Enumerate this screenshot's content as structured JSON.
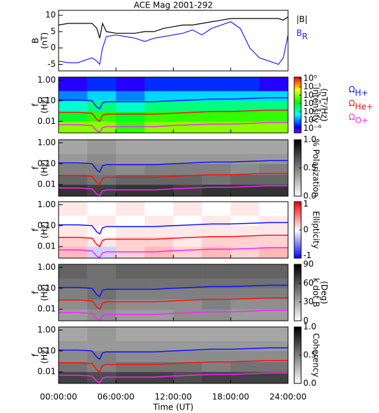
{
  "chart_data": [
    {
      "type": "line",
      "title": "ACE Mag 2001-292",
      "ylabel": [
        "B",
        "(nT)"
      ],
      "x": [
        0,
        1,
        2,
        3,
        3.5,
        4,
        4.3,
        4.6,
        5,
        6,
        7,
        8,
        9,
        10,
        11,
        12,
        13,
        14,
        15,
        16,
        17,
        18,
        19,
        20,
        21,
        22,
        23,
        23.5,
        24
      ],
      "series": [
        {
          "name": "|B|",
          "color": "#000000",
          "values": [
            7,
            7.5,
            7.5,
            7.5,
            7.5,
            6,
            3,
            7.5,
            5,
            4.5,
            4.5,
            4.5,
            5,
            5,
            6,
            6.5,
            7,
            7,
            7.5,
            8,
            8.5,
            9,
            9,
            9,
            9,
            9,
            9,
            8.5,
            9.5
          ]
        },
        {
          "name": "B",
          "subscript": "R",
          "color": "#2020ff",
          "values": [
            -4,
            -4.5,
            -4.5,
            -3.5,
            -3,
            -4,
            -5,
            0,
            3.5,
            4,
            3.5,
            3,
            2,
            3,
            3.5,
            4,
            4.5,
            5.5,
            4,
            6,
            7,
            8,
            6,
            0,
            -3,
            -4,
            -5,
            -3,
            4
          ]
        }
      ],
      "xlim": [
        0,
        24
      ],
      "xticks": [
        0,
        6,
        12,
        18,
        24
      ],
      "ylim": [
        -7,
        11.5
      ],
      "yticks": [
        -5,
        0,
        5,
        10
      ]
    },
    {
      "type": "spectrogram",
      "ylabel": [
        "f",
        "(Hz)"
      ],
      "log_y": true,
      "ylim": [
        0.0028,
        1.4
      ],
      "yticks": [
        {
          "value": 1,
          "label": "1.00"
        },
        {
          "value": 0.1,
          "label": "0.10"
        },
        {
          "value": 0.01,
          "label": "0.01"
        }
      ],
      "xlim": [
        0,
        24
      ],
      "xticks": [
        0,
        6,
        12,
        18,
        24
      ],
      "tbins": [
        0,
        3,
        6,
        9,
        12,
        15,
        18,
        21,
        24
      ],
      "fbins": [
        0.0028,
        0.01,
        0.03,
        0.1,
        0.3,
        1.4
      ],
      "z": [
        [
          0.01,
          0.01,
          0.003,
          0.01,
          0.01,
          0.01,
          0.01,
          0.01
        ],
        [
          0.001,
          0.003,
          0.001,
          0.003,
          0.003,
          0.003,
          0.003,
          0.003
        ],
        [
          0.0001,
          0.0003,
          0.0001,
          0.0003,
          0.0003,
          0.0003,
          0.0003,
          0.0003
        ],
        [
          1e-05,
          3e-05,
          1e-05,
          3e-05,
          3e-05,
          3e-05,
          3e-05,
          3e-05
        ],
        [
          1e-06,
          3e-06,
          1e-06,
          3e-06,
          3e-06,
          3e-06,
          3e-06,
          1e-06
        ]
      ],
      "colormap": "rainbow",
      "zlog": true,
      "zlim": [
        3e-07,
        1.5
      ],
      "zticks": [
        {
          "value": 1,
          "label": "10⁰"
        },
        {
          "value": 0.1,
          "label": "10⁻¹"
        },
        {
          "value": 0.01,
          "label": "10⁻²"
        },
        {
          "value": 0.001,
          "label": "10⁻³"
        },
        {
          "value": 0.0001,
          "label": "10⁻⁴"
        },
        {
          "value": 1e-05,
          "label": "10⁻⁵"
        },
        {
          "value": 1e-06,
          "label": "10⁻⁶"
        }
      ],
      "zlabel": [
        "Intensity",
        "(nT²/Hz)"
      ],
      "x": [
        0,
        2,
        3.5,
        4,
        4.3,
        4.6,
        5,
        6,
        8,
        10,
        12,
        14,
        16,
        18,
        20,
        22,
        24
      ],
      "series": [
        {
          "name": "Ω",
          "subscript": "H+",
          "color": "#1010ff",
          "values": [
            0.11,
            0.11,
            0.1,
            0.05,
            0.04,
            0.08,
            0.09,
            0.09,
            0.09,
            0.09,
            0.1,
            0.11,
            0.12,
            0.12,
            0.13,
            0.14,
            0.14
          ]
        },
        {
          "name": "Ω",
          "subscript": "He+",
          "color": "#ff1010",
          "values": [
            0.0275,
            0.0275,
            0.025,
            0.0125,
            0.01,
            0.02,
            0.0225,
            0.0225,
            0.0225,
            0.0225,
            0.025,
            0.0275,
            0.03,
            0.03,
            0.0325,
            0.035,
            0.035
          ]
        },
        {
          "name": "Ω",
          "subscript": "O+",
          "color": "#ff20ff",
          "values": [
            0.0069,
            0.0069,
            0.0063,
            0.0035,
            0.003,
            0.005,
            0.0056,
            0.0056,
            0.0056,
            0.0056,
            0.0063,
            0.0069,
            0.0075,
            0.0075,
            0.0081,
            0.0088,
            0.0088
          ]
        }
      ]
    },
    {
      "type": "spectrogram",
      "ylabel": [
        "f",
        "(Hz)"
      ],
      "log_y": true,
      "ylim": [
        0.0028,
        1.4
      ],
      "yticks": [
        {
          "value": 1,
          "label": "1.00"
        },
        {
          "value": 0.1,
          "label": "0.10"
        },
        {
          "value": 0.01,
          "label": "0.01"
        }
      ],
      "xlim": [
        0,
        24
      ],
      "xticks": [
        0,
        6,
        12,
        18,
        24
      ],
      "tbins": [
        0,
        3,
        6,
        9,
        12,
        15,
        18,
        21,
        24
      ],
      "fbins": [
        0.0028,
        0.01,
        0.03,
        0.1,
        0.3,
        1.4
      ],
      "z": [
        [
          0.8,
          0.75,
          0.8,
          0.8,
          0.75,
          0.8,
          0.8,
          0.8
        ],
        [
          0.6,
          0.55,
          0.6,
          0.6,
          0.6,
          0.55,
          0.6,
          0.6
        ],
        [
          0.5,
          0.5,
          0.45,
          0.5,
          0.5,
          0.5,
          0.45,
          0.5
        ],
        [
          0.4,
          0.45,
          0.4,
          0.4,
          0.4,
          0.4,
          0.4,
          0.4
        ],
        [
          0.35,
          0.4,
          0.35,
          0.35,
          0.35,
          0.35,
          0.35,
          0.35
        ]
      ],
      "colormap": "gray_r",
      "zlim": [
        0,
        1
      ],
      "zticks": [
        {
          "value": 1,
          "label": "1.0"
        },
        {
          "value": 0.5,
          "label": "0.5"
        },
        {
          "value": 0,
          "label": "0.0"
        }
      ],
      "zlabel": [
        "% Polarization"
      ]
    },
    {
      "type": "spectrogram",
      "ylabel": [
        "f",
        "(Hz)"
      ],
      "log_y": true,
      "ylim": [
        0.0028,
        1.4
      ],
      "yticks": [
        {
          "value": 1,
          "label": "1.00"
        },
        {
          "value": 0.1,
          "label": "0.10"
        },
        {
          "value": 0.01,
          "label": "0.01"
        }
      ],
      "xlim": [
        0,
        24
      ],
      "xticks": [
        0,
        6,
        12,
        18,
        24
      ],
      "tbins": [
        0,
        3,
        6,
        9,
        12,
        15,
        18,
        21,
        24
      ],
      "fbins": [
        0.0028,
        0.01,
        0.03,
        0.1,
        0.3,
        1.4
      ],
      "z": [
        [
          0.3,
          -0.2,
          0.2,
          0.3,
          0.2,
          0.3,
          0.2,
          0.3
        ],
        [
          0.2,
          0.1,
          0.2,
          0.2,
          0.1,
          0.2,
          0.2,
          0.2
        ],
        [
          0.1,
          0,
          0.1,
          0.1,
          0.1,
          0.1,
          0.1,
          0.1
        ],
        [
          0,
          0.1,
          0,
          0.1,
          0,
          0.1,
          0,
          0.1
        ],
        [
          0.1,
          0,
          0.1,
          0,
          0.1,
          0,
          0.1,
          0
        ]
      ],
      "colormap": "bwr",
      "zlim": [
        -1.1,
        1.1
      ],
      "zticks": [
        1,
        0,
        -1
      ],
      "zlabel": [
        "Ellipticity"
      ]
    },
    {
      "type": "spectrogram",
      "ylabel": [
        "f",
        "(Hz)"
      ],
      "log_y": true,
      "ylim": [
        0.0028,
        1.4
      ],
      "yticks": [
        {
          "value": 1,
          "label": "1.00"
        },
        {
          "value": 0.1,
          "label": "0.10"
        },
        {
          "value": 0.01,
          "label": "0.01"
        }
      ],
      "xlim": [
        0,
        24
      ],
      "xticks": [
        0,
        6,
        12,
        18,
        24
      ],
      "tbins": [
        0,
        3,
        6,
        9,
        12,
        15,
        18,
        21,
        24
      ],
      "fbins": [
        0.0028,
        0.01,
        0.03,
        0.1,
        0.3,
        1.4
      ],
      "z": [
        [
          35,
          40,
          35,
          35,
          40,
          40,
          35,
          35
        ],
        [
          40,
          45,
          40,
          40,
          40,
          45,
          40,
          40
        ],
        [
          45,
          50,
          45,
          45,
          45,
          45,
          45,
          45
        ],
        [
          50,
          50,
          50,
          50,
          50,
          50,
          50,
          50
        ],
        [
          55,
          50,
          55,
          55,
          55,
          55,
          55,
          55
        ]
      ],
      "colormap": "gray_r",
      "zlim": [
        0,
        90
      ],
      "zticks": [
        90,
        60,
        30,
        0
      ],
      "zlabel": [
        "k dot B",
        "(Deg)"
      ]
    },
    {
      "type": "spectrogram",
      "ylabel": [
        "f",
        "(Hz)"
      ],
      "log_y": true,
      "ylim": [
        0.0028,
        1.4
      ],
      "yticks": [
        {
          "value": 1,
          "label": "1.00"
        },
        {
          "value": 0.1,
          "label": "0.10"
        },
        {
          "value": 0.01,
          "label": "0.01"
        }
      ],
      "xlim": [
        0,
        24
      ],
      "xticks": [
        {
          "value": 0,
          "label": "00:00:00"
        },
        {
          "value": 6,
          "label": "06:00:00"
        },
        {
          "value": 12,
          "label": "12:00:00"
        },
        {
          "value": 18,
          "label": "18:00:00"
        },
        {
          "value": 24,
          "label": "24:00:00"
        }
      ],
      "xlabel": "Time (UT)",
      "tbins": [
        0,
        3,
        6,
        9,
        12,
        15,
        18,
        21,
        24
      ],
      "fbins": [
        0.0028,
        0.01,
        0.03,
        0.1,
        0.3,
        1.4
      ],
      "z": [
        [
          0.75,
          0.7,
          0.75,
          0.75,
          0.7,
          0.75,
          0.75,
          0.75
        ],
        [
          0.55,
          0.5,
          0.55,
          0.55,
          0.55,
          0.5,
          0.55,
          0.55
        ],
        [
          0.45,
          0.5,
          0.45,
          0.45,
          0.45,
          0.45,
          0.45,
          0.45
        ],
        [
          0.4,
          0.4,
          0.4,
          0.4,
          0.4,
          0.4,
          0.4,
          0.4
        ],
        [
          0.35,
          0.4,
          0.35,
          0.35,
          0.35,
          0.35,
          0.35,
          0.35
        ]
      ],
      "colormap": "gray_r",
      "zlim": [
        0,
        1
      ],
      "zticks": [
        {
          "value": 1,
          "label": "1.0"
        },
        {
          "value": 0.5,
          "label": "0.5"
        },
        {
          "value": 0,
          "label": "0.0"
        }
      ],
      "zlabel": [
        "Coherency"
      ]
    }
  ]
}
